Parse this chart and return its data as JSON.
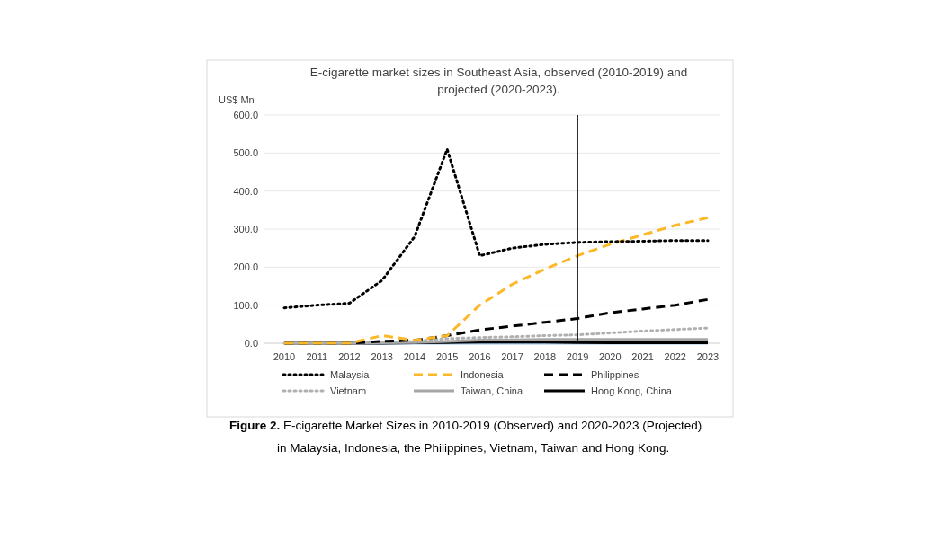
{
  "chart_data": {
    "type": "line",
    "title": "E-cigarette market sizes in Southeast Asia, observed (2010-2019) and projected (2020-2023).",
    "ylabel": "US$ Mn",
    "categories": [
      "2010",
      "2011",
      "2012",
      "2013",
      "2014",
      "2015",
      "2016",
      "2017",
      "2018",
      "2019",
      "2020",
      "2021",
      "2022",
      "2023"
    ],
    "series": [
      {
        "name": "Malaysia",
        "color": "#000000",
        "line_style": "dotted",
        "values": [
          93,
          100,
          105,
          165,
          280,
          510,
          230,
          250,
          260,
          265,
          267,
          268,
          270,
          270
        ]
      },
      {
        "name": "Indonesia",
        "color": "#fbb829",
        "line_style": "dashed",
        "values": [
          0,
          0,
          0,
          20,
          8,
          20,
          100,
          155,
          195,
          230,
          260,
          285,
          310,
          330
        ]
      },
      {
        "name": "Philippines",
        "color": "#000000",
        "line_style": "dashed",
        "values": [
          0,
          0,
          0,
          5,
          8,
          20,
          35,
          45,
          55,
          65,
          80,
          90,
          100,
          115
        ]
      },
      {
        "name": "Vietnam",
        "color": "#b0b0b0",
        "line_style": "dotted",
        "values": [
          0,
          0,
          0,
          2,
          5,
          12,
          15,
          17,
          20,
          22,
          27,
          32,
          36,
          40
        ]
      },
      {
        "name": "Taiwan, China",
        "color": "#a6a6a6",
        "line_style": "solid",
        "values": [
          0,
          0,
          0,
          1,
          2,
          5,
          8,
          9,
          10,
          10,
          10,
          10,
          10,
          10
        ]
      },
      {
        "name": "Hong Kong, China",
        "color": "#000000",
        "line_style": "solid",
        "values": [
          0,
          0,
          0,
          0,
          1,
          2,
          3,
          3,
          3,
          2,
          1,
          1,
          1,
          1
        ]
      },
      {
        "color": "#9dc3e6",
        "line_style": "solid",
        "values": [
          0,
          0,
          0,
          0,
          0,
          0,
          0,
          0,
          0,
          0,
          0,
          0,
          0,
          0
        ]
      }
    ],
    "ylim": [
      0,
      600
    ],
    "yticks": [
      {
        "value": 0,
        "label": "0.0"
      },
      {
        "value": 100,
        "label": "100.0"
      },
      {
        "value": 200,
        "label": "200.0"
      },
      {
        "value": 300,
        "label": "300.0"
      },
      {
        "value": 400,
        "label": "400.0"
      },
      {
        "value": 500,
        "label": "500.0"
      },
      {
        "value": 600,
        "label": "600.0"
      }
    ],
    "grid": "y",
    "legend": "bottom",
    "ref_lines": [
      {
        "axis": "x",
        "value": "2019",
        "color": "#000000"
      }
    ],
    "annotations": [
      "Figure 2.",
      "E-cigarette Market Sizes in 2010-2019 (Observed) and 2020-2023 (Projected)",
      "in Malaysia, Indonesia, the Philippines, Vietnam, Taiwan and Hong Kong."
    ]
  }
}
